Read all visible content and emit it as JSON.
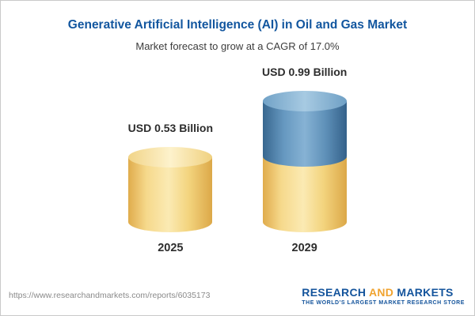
{
  "header": {
    "title": "Generative Artificial Intelligence (AI) in Oil and Gas Market",
    "subtitle": "Market forecast to grow at a CAGR of 17.0%"
  },
  "chart_data": {
    "type": "bar",
    "style": "cylinder",
    "title": "Generative Artificial Intelligence (AI) in Oil and Gas Market",
    "subtitle": "Market forecast to grow at a CAGR of 17.0%",
    "unit": "USD Billion",
    "categories": [
      "2025",
      "2029"
    ],
    "values": [
      0.53,
      0.99
    ],
    "cagr": "17.0%",
    "bars": [
      {
        "category": "2025",
        "value": 0.53,
        "label": "USD 0.53 Billion",
        "segments": {
          "base": 0.53
        }
      },
      {
        "category": "2029",
        "value": 0.99,
        "label": "USD 0.99 Billion",
        "segments": {
          "base": 0.53,
          "growth": 0.46
        }
      }
    ],
    "colors": {
      "base_segment": "#f3d47e",
      "growth_segment": "#5e90b8",
      "title_text": "#12569f",
      "label_text": "#2d2d2d"
    },
    "legend": "none",
    "grid": false,
    "ylim": [
      0,
      1.1
    ]
  },
  "footer": {
    "url": "https://www.researchandmarkets.com/reports/6035173",
    "logo": {
      "word1": "RESEARCH",
      "word2": "AND",
      "word3": "MARKETS",
      "tagline": "THE WORLD'S LARGEST MARKET RESEARCH STORE"
    }
  }
}
